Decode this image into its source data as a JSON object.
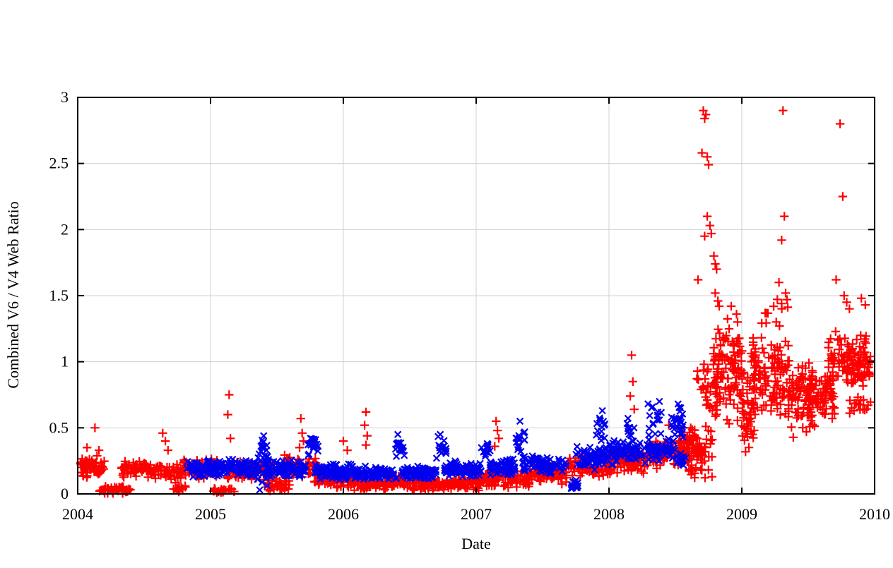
{
  "chart_data": {
    "type": "scatter",
    "title": "",
    "xlabel": "Date",
    "ylabel": "Combined V6 / V4 Web Ratio",
    "xlim": [
      2004,
      2010
    ],
    "ylim": [
      0,
      3
    ],
    "x_ticks": [
      2004,
      2005,
      2006,
      2007,
      2008,
      2009,
      2010
    ],
    "x_tick_labels": [
      "2004",
      "2005",
      "2006",
      "2007",
      "2008",
      "2009",
      "2010"
    ],
    "y_ticks": [
      0,
      0.5,
      1,
      1.5,
      2,
      2.5,
      3
    ],
    "y_tick_labels": [
      "0",
      "0.5",
      "1",
      "1.5",
      "2",
      "2.5",
      "3"
    ],
    "grid": true,
    "legend": null,
    "colors": {
      "grid": "#d0d0d0",
      "border": "#000000"
    },
    "series": [
      {
        "id": "red-plus",
        "marker": "plus",
        "color": "#ff0000",
        "seed": 42,
        "segments": [
          [
            2004.02,
            2004.2,
            60,
            0.1,
            0.3
          ],
          [
            2004.16,
            2004.4,
            45,
            0.0,
            0.06
          ],
          [
            2004.32,
            2004.55,
            55,
            0.12,
            0.26
          ],
          [
            2004.52,
            2004.8,
            55,
            0.08,
            0.24
          ],
          [
            2004.72,
            2004.82,
            12,
            0.01,
            0.08
          ],
          [
            2004.8,
            2005.06,
            65,
            0.1,
            0.28
          ],
          [
            2005.02,
            2005.18,
            22,
            0.0,
            0.05
          ],
          [
            2005.12,
            2005.48,
            85,
            0.08,
            0.25
          ],
          [
            2005.42,
            2005.6,
            35,
            0.02,
            0.12
          ],
          [
            2005.55,
            2005.8,
            55,
            0.1,
            0.32
          ],
          [
            2005.78,
            2006.1,
            75,
            0.03,
            0.18
          ],
          [
            2006.08,
            2006.6,
            115,
            0.02,
            0.14
          ],
          [
            2006.58,
            2007.02,
            110,
            0.02,
            0.13
          ],
          [
            2007.0,
            2007.4,
            100,
            0.04,
            0.18
          ],
          [
            2007.38,
            2007.7,
            85,
            0.07,
            0.22
          ],
          [
            2007.68,
            2008.02,
            85,
            0.12,
            0.3
          ],
          [
            2008.0,
            2008.3,
            80,
            0.14,
            0.36
          ],
          [
            2008.28,
            2008.55,
            80,
            0.17,
            0.42
          ],
          [
            2008.52,
            2008.68,
            55,
            0.22,
            0.52
          ],
          [
            2008.6,
            2008.78,
            55,
            0.04,
            0.55
          ],
          [
            2008.66,
            2008.82,
            30,
            0.55,
            1.05
          ],
          [
            2008.78,
            2009.0,
            110,
            0.5,
            1.35
          ],
          [
            2009.0,
            2009.1,
            55,
            0.25,
            1.1
          ],
          [
            2009.08,
            2009.35,
            110,
            0.55,
            1.2
          ],
          [
            2009.15,
            2009.35,
            12,
            1.25,
            1.52
          ],
          [
            2009.35,
            2009.55,
            85,
            0.4,
            1.05
          ],
          [
            2009.5,
            2009.7,
            80,
            0.55,
            0.95
          ],
          [
            2009.65,
            2009.97,
            125,
            0.8,
            1.25
          ],
          [
            2009.8,
            2009.97,
            18,
            0.58,
            0.8
          ]
        ],
        "outliers": [
          [
            2004.13,
            0.5
          ],
          [
            2004.07,
            0.35
          ],
          [
            2004.16,
            0.33
          ],
          [
            2004.64,
            0.46
          ],
          [
            2004.66,
            0.4
          ],
          [
            2004.68,
            0.33
          ],
          [
            2005.14,
            0.75
          ],
          [
            2005.13,
            0.6
          ],
          [
            2005.15,
            0.42
          ],
          [
            2005.68,
            0.57
          ],
          [
            2005.69,
            0.46
          ],
          [
            2005.7,
            0.4
          ],
          [
            2005.67,
            0.35
          ],
          [
            2006.0,
            0.4
          ],
          [
            2006.03,
            0.33
          ],
          [
            2006.17,
            0.62
          ],
          [
            2006.16,
            0.52
          ],
          [
            2006.18,
            0.44
          ],
          [
            2006.17,
            0.37
          ],
          [
            2007.15,
            0.55
          ],
          [
            2007.16,
            0.48
          ],
          [
            2007.17,
            0.42
          ],
          [
            2007.14,
            0.36
          ],
          [
            2008.17,
            1.05
          ],
          [
            2008.18,
            0.85
          ],
          [
            2008.16,
            0.74
          ],
          [
            2008.19,
            0.64
          ],
          [
            2008.45,
            0.52
          ],
          [
            2008.71,
            2.9
          ],
          [
            2008.73,
            2.87
          ],
          [
            2008.72,
            2.84
          ],
          [
            2008.7,
            2.58
          ],
          [
            2008.74,
            2.55
          ],
          [
            2008.75,
            2.49
          ],
          [
            2008.74,
            2.1
          ],
          [
            2008.76,
            2.03
          ],
          [
            2008.77,
            1.97
          ],
          [
            2008.72,
            1.95
          ],
          [
            2008.67,
            1.62
          ],
          [
            2008.79,
            1.8
          ],
          [
            2008.8,
            1.74
          ],
          [
            2008.81,
            1.7
          ],
          [
            2008.8,
            1.52
          ],
          [
            2008.82,
            1.46
          ],
          [
            2008.83,
            1.42
          ],
          [
            2008.92,
            1.42
          ],
          [
            2008.96,
            1.36
          ],
          [
            2009.31,
            2.9
          ],
          [
            2009.32,
            2.1
          ],
          [
            2009.3,
            1.92
          ],
          [
            2009.28,
            1.6
          ],
          [
            2009.33,
            1.52
          ],
          [
            2009.34,
            1.47
          ],
          [
            2009.74,
            2.8
          ],
          [
            2009.76,
            2.25
          ],
          [
            2009.71,
            1.62
          ],
          [
            2009.77,
            1.5
          ],
          [
            2009.79,
            1.45
          ],
          [
            2009.81,
            1.4
          ],
          [
            2009.9,
            1.48
          ],
          [
            2009.93,
            1.43
          ]
        ]
      },
      {
        "id": "blue-cross",
        "marker": "cross",
        "color": "#0000ee",
        "seed": 7,
        "segments": [
          [
            2004.82,
            2005.1,
            75,
            0.12,
            0.26
          ],
          [
            2005.08,
            2005.34,
            75,
            0.13,
            0.27
          ],
          [
            2005.35,
            2005.44,
            35,
            0.02,
            0.42
          ],
          [
            2005.42,
            2005.72,
            85,
            0.12,
            0.26
          ],
          [
            2005.73,
            2005.81,
            18,
            0.25,
            0.46
          ],
          [
            2005.78,
            2006.08,
            95,
            0.1,
            0.24
          ],
          [
            2006.06,
            2006.4,
            95,
            0.1,
            0.22
          ],
          [
            2006.39,
            2006.46,
            16,
            0.24,
            0.45
          ],
          [
            2006.44,
            2006.7,
            80,
            0.1,
            0.22
          ],
          [
            2006.7,
            2006.78,
            16,
            0.26,
            0.45
          ],
          [
            2006.76,
            2007.04,
            85,
            0.12,
            0.25
          ],
          [
            2007.04,
            2007.12,
            14,
            0.26,
            0.4
          ],
          [
            2007.1,
            2007.3,
            65,
            0.14,
            0.27
          ],
          [
            2007.29,
            2007.37,
            16,
            0.28,
            0.54
          ],
          [
            2007.35,
            2007.68,
            85,
            0.15,
            0.3
          ],
          [
            2007.69,
            2007.77,
            14,
            0.02,
            0.14
          ],
          [
            2007.75,
            2008.0,
            70,
            0.18,
            0.38
          ],
          [
            2007.9,
            2007.97,
            14,
            0.4,
            0.62
          ],
          [
            2008.0,
            2008.3,
            75,
            0.22,
            0.42
          ],
          [
            2008.13,
            2008.19,
            10,
            0.42,
            0.58
          ],
          [
            2008.29,
            2008.4,
            16,
            0.4,
            0.7
          ],
          [
            2008.3,
            2008.5,
            55,
            0.24,
            0.44
          ],
          [
            2008.47,
            2008.56,
            26,
            0.34,
            0.68
          ],
          [
            2008.5,
            2008.58,
            14,
            0.18,
            0.34
          ]
        ],
        "outliers": [
          [
            2005.37,
            0.03
          ],
          [
            2005.4,
            0.44
          ],
          [
            2006.41,
            0.45
          ],
          [
            2006.73,
            0.45
          ],
          [
            2007.33,
            0.55
          ],
          [
            2007.95,
            0.63
          ],
          [
            2008.33,
            0.66
          ],
          [
            2008.38,
            0.7
          ],
          [
            2008.52,
            0.68
          ],
          [
            2008.54,
            0.65
          ]
        ]
      }
    ]
  }
}
